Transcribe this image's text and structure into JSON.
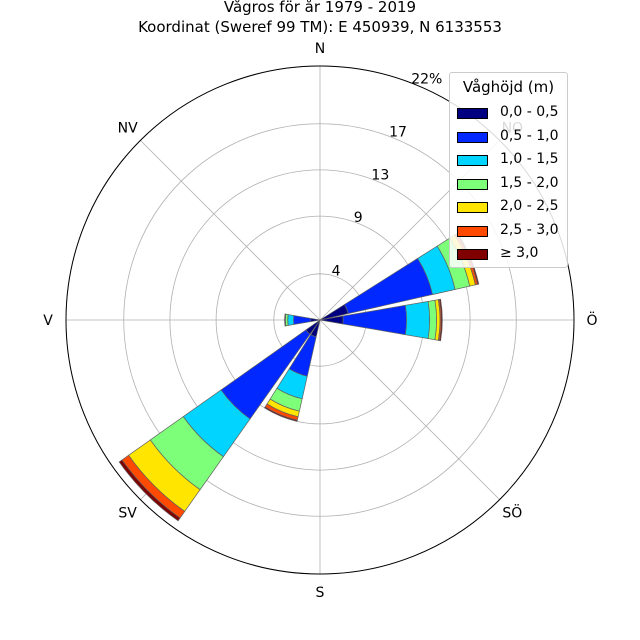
{
  "title": {
    "line1": "Vågros för år 1979 - 2019",
    "line2": "Koordinat (Sweref 99 TM): E 450939, N 6133553"
  },
  "directions": [
    "N",
    "NO",
    "Ö",
    "SÖ",
    "S",
    "SV",
    "V",
    "NV"
  ],
  "rings": [
    "4",
    "9",
    "13",
    "17",
    "22%"
  ],
  "legend": {
    "title": "Våghöjd (m)",
    "items": [
      {
        "label": "0,0 - 0,5",
        "color": "#000080"
      },
      {
        "label": "0,5 - 1,0",
        "color": "#0028ff"
      },
      {
        "label": "1,0 - 1,5",
        "color": "#00d4ff"
      },
      {
        "label": "1,5 - 2,0",
        "color": "#7dff7a"
      },
      {
        "label": "2,0 - 2,5",
        "color": "#ffe500"
      },
      {
        "label": "2,5 - 3,0",
        "color": "#ff4a00"
      },
      {
        "label": "≥ 3,0",
        "color": "#800000"
      }
    ]
  },
  "chart_data": {
    "type": "windrose",
    "rmax": 22,
    "ring_values": [
      4,
      9,
      13,
      17,
      22
    ],
    "sector_width_deg": 22.5,
    "sectors": [
      {
        "direction": "Ö",
        "deg": 90,
        "values": [
          2,
          5.5,
          2,
          0.6,
          0.3,
          0.1,
          0.1
        ]
      },
      {
        "direction": "ÖNÖ",
        "deg": 67.5,
        "values": [
          2.5,
          7.5,
          2,
          1.3,
          0.5,
          0.2,
          0.1
        ]
      },
      {
        "direction": "SSV",
        "deg": 202.5,
        "values": [
          1.5,
          3.5,
          2,
          1.1,
          0.5,
          0.3,
          0.1
        ]
      },
      {
        "direction": "SV",
        "deg": 225,
        "values": [
          1.5,
          9,
          4,
          3.5,
          2.3,
          0.7,
          0.3
        ]
      },
      {
        "direction": "V",
        "deg": 270,
        "values": [
          0.8,
          1.5,
          0.5,
          0.2,
          0.05,
          0.02,
          0
        ]
      }
    ]
  }
}
